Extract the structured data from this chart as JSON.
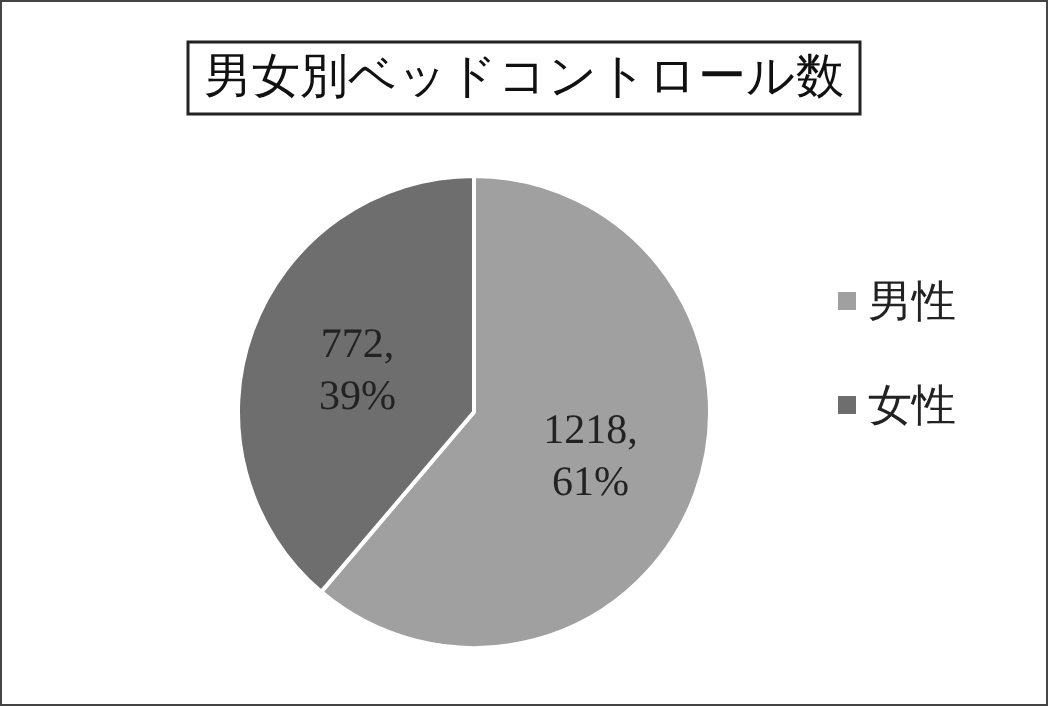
{
  "chart_data": {
    "type": "pie",
    "title": "男女別ベッドコントロール数",
    "categories": [
      "男性",
      "女性"
    ],
    "values": [
      1218,
      772
    ],
    "colors": [
      "#a0a0a0",
      "#6e6e6e"
    ],
    "value_labels": [
      "1218,\n61%",
      "772,\n39%"
    ],
    "legend": "right"
  }
}
